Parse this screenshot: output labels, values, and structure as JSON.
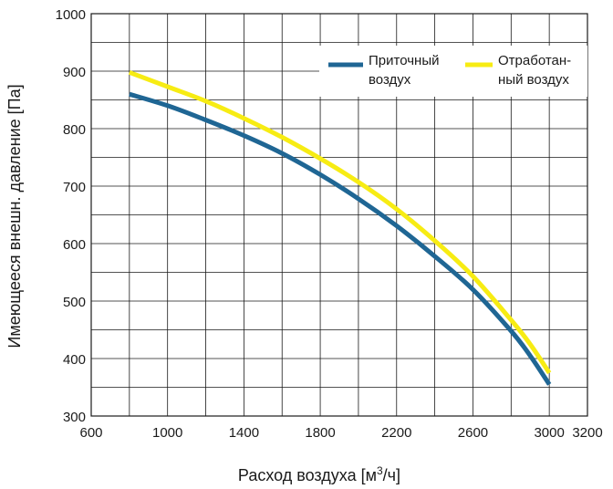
{
  "chart_data": {
    "type": "line",
    "xlabel_main": "Расход воздуха [м",
    "xlabel_sup": "3",
    "xlabel_end": "/ч]",
    "ylabel": "Имеющееся внешн. давление [Па]",
    "xlim": [
      600,
      3200
    ],
    "ylim": [
      300,
      1000
    ],
    "x_ticks": [
      600,
      1000,
      1400,
      1800,
      2200,
      2600,
      3000,
      3200
    ],
    "x_tick_labels": [
      "600",
      "1000",
      "1400",
      "1800",
      "2200",
      "2600",
      "3000",
      "3200"
    ],
    "x_grid": [
      600,
      800,
      1000,
      1200,
      1400,
      1600,
      1800,
      2000,
      2200,
      2400,
      2600,
      2800,
      3000,
      3200
    ],
    "y_ticks": [
      300,
      400,
      500,
      600,
      700,
      800,
      900,
      1000
    ],
    "y_tick_labels": [
      "300",
      "400",
      "500",
      "600",
      "700",
      "800",
      "900",
      "1000"
    ],
    "y_grid": [
      300,
      350,
      400,
      450,
      500,
      550,
      600,
      650,
      700,
      750,
      800,
      850,
      900,
      950,
      1000
    ],
    "grid": true,
    "legend_position": "top-right",
    "series": [
      {
        "name_line1": "Приточный",
        "name_line2": "воздух",
        "color": "#1f6694",
        "x": [
          800,
          1000,
          1200,
          1400,
          1600,
          1800,
          2000,
          2200,
          2400,
          2600,
          2800,
          2900,
          3000
        ],
        "y": [
          860,
          840,
          815,
          788,
          757,
          720,
          678,
          631,
          578,
          520,
          448,
          405,
          355
        ]
      },
      {
        "name_line1": "Отработан-",
        "name_line2": "ный воздух",
        "color": "#f7ec13",
        "x": [
          800,
          1000,
          1200,
          1400,
          1600,
          1800,
          2000,
          2200,
          2400,
          2600,
          2800,
          2900,
          3000
        ],
        "y": [
          898,
          873,
          848,
          818,
          785,
          748,
          707,
          660,
          605,
          543,
          467,
          425,
          375
        ]
      }
    ]
  }
}
